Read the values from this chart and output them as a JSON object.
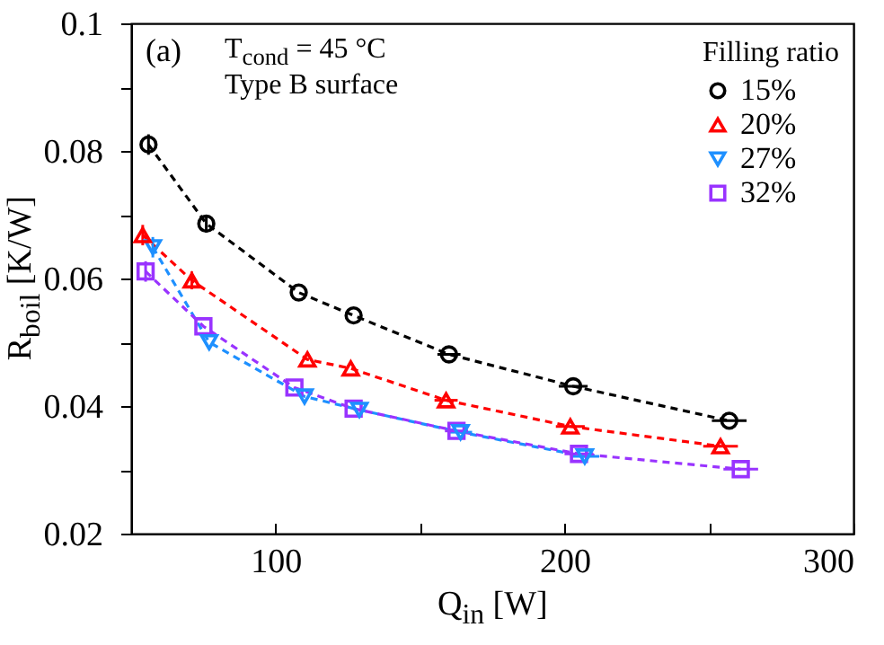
{
  "chart_data": {
    "type": "line",
    "annotations": [
      "(a)",
      "T$_{cond}$ = 45 °C",
      "Type B surface"
    ],
    "xlabel": "Q$_{in}$ [W]",
    "ylabel": "R$_{boil}$ [K/W]",
    "legend_title": "Filling ratio",
    "xlim": [
      50,
      300
    ],
    "xticks": [
      {
        "value": 50,
        "label": null
      },
      100,
      {
        "value": 150,
        "label": null
      },
      200,
      {
        "value": 250,
        "label": null
      },
      300
    ],
    "ylim": [
      0.02,
      0.1
    ],
    "yticks": [
      0.02,
      {
        "value": 0.03,
        "label": null
      },
      0.04,
      {
        "value": 0.05,
        "label": null
      },
      0.06,
      {
        "value": 0.07,
        "label": null
      },
      0.08,
      {
        "value": 0.09,
        "label": null
      },
      0.1
    ],
    "grid": false,
    "legend": "top right",
    "line_style": "dashed",
    "series": [
      {
        "name": "15%",
        "color": "#000000",
        "marker": "circle",
        "x": [
          56,
          76,
          108,
          127,
          160,
          203,
          257
        ],
        "values": [
          0.081,
          0.0686,
          0.0578,
          0.0542,
          0.0481,
          0.0431,
          0.0377
        ],
        "errors": [
          0.0016,
          0.0014,
          null,
          null,
          null,
          null,
          null
        ],
        "xerrors": [
          null,
          null,
          null,
          null,
          4,
          5,
          6
        ]
      },
      {
        "name": "20%",
        "color": "#ff0000",
        "marker": "triangle",
        "x": [
          54,
          71,
          111,
          126,
          159,
          202,
          254
        ],
        "values": [
          0.0668,
          0.0597,
          0.0473,
          0.0459,
          0.0409,
          0.0368,
          0.0337
        ],
        "errors": [
          0.0016,
          0.0014,
          null,
          null,
          null,
          null,
          null
        ],
        "xerrors": [
          null,
          null,
          null,
          null,
          4,
          5,
          6
        ]
      },
      {
        "name": "27%",
        "color": "#1e90ff",
        "marker": "triangle-down",
        "x": [
          57.5,
          77,
          110,
          129,
          164,
          207
        ],
        "values": [
          0.0649,
          0.05,
          0.0415,
          0.0394,
          0.0359,
          0.0321
        ],
        "errors": [
          0.0016,
          null,
          null,
          null,
          null,
          null
        ],
        "xerrors": [
          null,
          null,
          null,
          null,
          4,
          5
        ]
      },
      {
        "name": "32%",
        "color": "#9933ff",
        "marker": "square",
        "x": [
          55,
          75,
          106.5,
          127,
          162.6,
          205,
          261
        ],
        "values": [
          0.0611,
          0.0525,
          0.0429,
          0.0396,
          0.0361,
          0.0325,
          0.0301
        ],
        "errors": [
          0.0016,
          null,
          null,
          null,
          null,
          null,
          null
        ],
        "xerrors": [
          null,
          null,
          null,
          null,
          4,
          5,
          6
        ]
      }
    ]
  }
}
